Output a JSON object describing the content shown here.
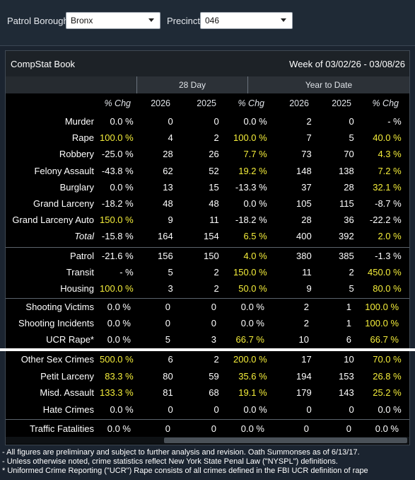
{
  "filters": {
    "borough_label": "Patrol Borough:",
    "borough_value": "Bronx",
    "precinct_label": "Precinct:",
    "precinct_value": "046"
  },
  "panel": {
    "title": "CompStat Book",
    "week": "Week of 03/02/26 - 03/08/26"
  },
  "band": {
    "day28": "28 Day",
    "ytd": "Year to Date"
  },
  "columns": [
    "% Chg",
    "2026",
    "2025",
    "% Chg",
    "2026",
    "2025",
    "% Chg"
  ],
  "sections": [
    [
      {
        "label": "Murder",
        "v": [
          "0.0 %",
          "0",
          "0",
          "0.0 %",
          "2",
          "0",
          "- %"
        ],
        "hl": [
          0,
          0,
          0,
          0,
          0,
          0,
          0
        ]
      },
      {
        "label": "Rape",
        "v": [
          "100.0 %",
          "4",
          "2",
          "100.0 %",
          "7",
          "5",
          "40.0 %"
        ],
        "hl": [
          1,
          0,
          0,
          1,
          0,
          0,
          1
        ]
      },
      {
        "label": "Robbery",
        "v": [
          "-25.0 %",
          "28",
          "26",
          "7.7 %",
          "73",
          "70",
          "4.3 %"
        ],
        "hl": [
          0,
          0,
          0,
          1,
          0,
          0,
          1
        ]
      },
      {
        "label": "Felony Assault",
        "v": [
          "-43.8 %",
          "62",
          "52",
          "19.2 %",
          "148",
          "138",
          "7.2 %"
        ],
        "hl": [
          0,
          0,
          0,
          1,
          0,
          0,
          1
        ]
      },
      {
        "label": "Burglary",
        "v": [
          "0.0 %",
          "13",
          "15",
          "-13.3 %",
          "37",
          "28",
          "32.1 %"
        ],
        "hl": [
          0,
          0,
          0,
          0,
          0,
          0,
          1
        ]
      },
      {
        "label": "Grand Larceny",
        "v": [
          "-18.2 %",
          "48",
          "48",
          "0.0 %",
          "105",
          "115",
          "-8.7 %"
        ],
        "hl": [
          0,
          0,
          0,
          0,
          0,
          0,
          0
        ]
      },
      {
        "label": "Grand Larceny Auto",
        "v": [
          "150.0 %",
          "9",
          "11",
          "-18.2 %",
          "28",
          "36",
          "-22.2 %"
        ],
        "hl": [
          1,
          0,
          0,
          0,
          0,
          0,
          0
        ]
      },
      {
        "label": "Total",
        "v": [
          "-15.8 %",
          "164",
          "154",
          "6.5 %",
          "400",
          "392",
          "2.0 %"
        ],
        "hl": [
          0,
          0,
          0,
          1,
          0,
          0,
          1
        ],
        "total": true
      }
    ],
    [
      {
        "label": "Patrol",
        "v": [
          "-21.6 %",
          "156",
          "150",
          "4.0 %",
          "380",
          "385",
          "-1.3 %"
        ],
        "hl": [
          0,
          0,
          0,
          1,
          0,
          0,
          0
        ]
      },
      {
        "label": "Transit",
        "v": [
          "- %",
          "5",
          "2",
          "150.0 %",
          "11",
          "2",
          "450.0 %"
        ],
        "hl": [
          0,
          0,
          0,
          1,
          0,
          0,
          1
        ]
      },
      {
        "label": "Housing",
        "v": [
          "100.0 %",
          "3",
          "2",
          "50.0 %",
          "9",
          "5",
          "80.0 %"
        ],
        "hl": [
          1,
          0,
          0,
          1,
          0,
          0,
          1
        ]
      }
    ],
    [
      {
        "label": "Shooting Victims",
        "v": [
          "0.0 %",
          "0",
          "0",
          "0.0 %",
          "2",
          "1",
          "100.0 %"
        ],
        "hl": [
          0,
          0,
          0,
          0,
          0,
          0,
          1
        ]
      },
      {
        "label": "Shooting Incidents",
        "v": [
          "0.0 %",
          "0",
          "0",
          "0.0 %",
          "2",
          "1",
          "100.0 %"
        ],
        "hl": [
          0,
          0,
          0,
          0,
          0,
          0,
          1
        ]
      },
      {
        "label": "UCR Rape*",
        "v": [
          "0.0 %",
          "5",
          "3",
          "66.7 %",
          "10",
          "6",
          "66.7 %"
        ],
        "hl": [
          0,
          0,
          0,
          1,
          0,
          0,
          1
        ]
      }
    ],
    [
      {
        "label": "Other Sex Crimes",
        "v": [
          "500.0 %",
          "6",
          "2",
          "200.0 %",
          "17",
          "10",
          "70.0 %"
        ],
        "hl": [
          1,
          0,
          0,
          1,
          0,
          0,
          1
        ]
      },
      {
        "label": "Petit Larceny",
        "v": [
          "83.3 %",
          "80",
          "59",
          "35.6 %",
          "194",
          "153",
          "26.8 %"
        ],
        "hl": [
          1,
          0,
          0,
          1,
          0,
          0,
          1
        ]
      },
      {
        "label": "Misd. Assault",
        "v": [
          "133.3 %",
          "81",
          "68",
          "19.1 %",
          "179",
          "143",
          "25.2 %"
        ],
        "hl": [
          1,
          0,
          0,
          1,
          0,
          0,
          1
        ]
      },
      {
        "label": "Hate Crimes",
        "v": [
          "0.0 %",
          "0",
          "0",
          "0.0 %",
          "0",
          "0",
          "0.0 %"
        ],
        "hl": [
          0,
          0,
          0,
          0,
          0,
          0,
          0
        ]
      }
    ],
    [
      {
        "label": "Traffic Fatalities",
        "v": [
          "0.0 %",
          "0",
          "0",
          "0.0 %",
          "0",
          "0",
          "0.0 %"
        ],
        "hl": [
          0,
          0,
          0,
          0,
          0,
          0,
          0
        ]
      }
    ]
  ],
  "notes": [
    "- All figures are preliminary and subject to further analysis and revision. Oath Summonses as of 6/13/17.",
    "- Unless otherwise noted, crime statistics reflect New York State Penal Law (\"NYSPL\") definitions.",
    "* Uniformed Crime Reporting (\"UCR\") Rape consists of all crimes defined in the FBI UCR definition of rape"
  ],
  "colors": {
    "highlight": "#f5ee3a",
    "panel_bg": "#000000",
    "page_bg": "#1b2430"
  }
}
